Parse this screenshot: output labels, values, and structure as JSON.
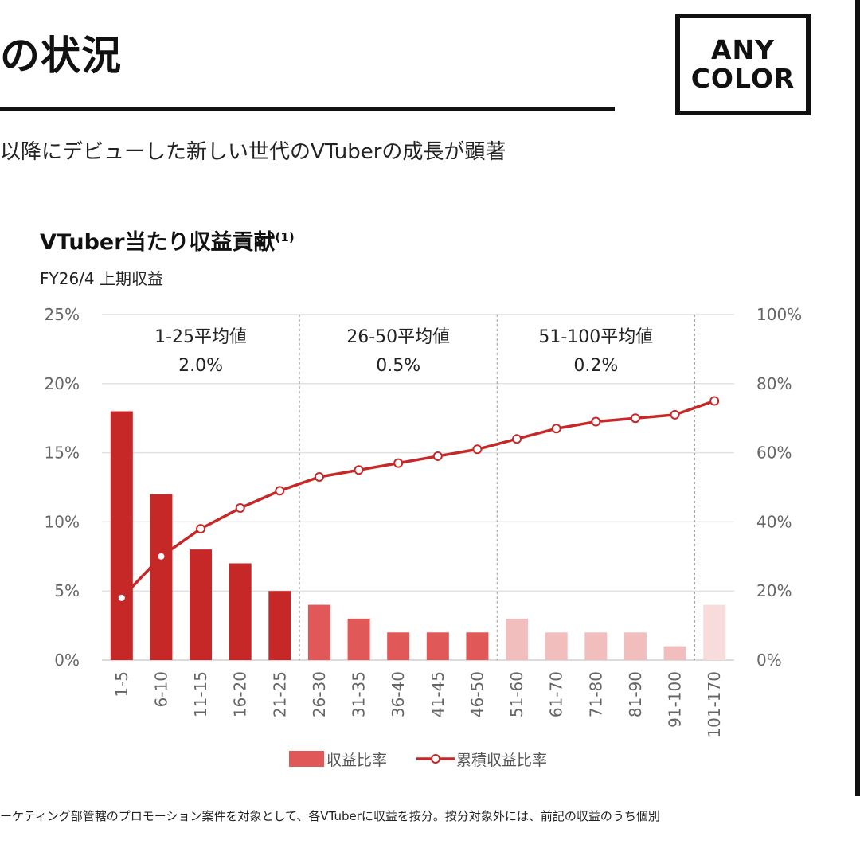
{
  "header": {
    "title": "の状況",
    "subtitle": "以降にデビューした新しい世代のVTuberの成長が顕著",
    "logo_line1": "ANY",
    "logo_line2": "COLOR"
  },
  "footnote": "ーケティング部管轄のプロモーション案件を対象として、各VTuberに収益を按分。按分対象外には、前記の収益のうち個別",
  "chart_data": {
    "type": "bar",
    "title": "VTuber当たり収益貢献",
    "title_note": "(1)",
    "subtitle": "FY26/4 上期収益",
    "categories": [
      "1-5",
      "6-10",
      "11-15",
      "16-20",
      "21-25",
      "26-30",
      "31-35",
      "36-40",
      "41-45",
      "46-50",
      "51-60",
      "61-70",
      "71-80",
      "81-90",
      "91-100",
      "101-170"
    ],
    "series": [
      {
        "name": "収益比率",
        "type": "bar",
        "axis": "left",
        "values": [
          18,
          12,
          8,
          7,
          5,
          4,
          3,
          2,
          2,
          2,
          3,
          2,
          2,
          2,
          1,
          4
        ]
      },
      {
        "name": "累積収益比率",
        "type": "line",
        "axis": "right",
        "values": [
          18,
          30,
          38,
          44,
          49,
          53,
          55,
          57,
          59,
          61,
          64,
          67,
          69,
          70,
          71,
          75
        ]
      }
    ],
    "bar_colors": {
      "1-25": "#c62828",
      "26-50": "#e05858",
      "51-100": "#f2bdbd",
      "101-170": "#f8dcdc"
    },
    "line_color": "#c62828",
    "y_left": {
      "range": [
        0,
        25
      ],
      "ticks": [
        "0%",
        "5%",
        "10%",
        "15%",
        "20%",
        "25%"
      ]
    },
    "y_right": {
      "range": [
        0,
        100
      ],
      "ticks": [
        "0%",
        "20%",
        "40%",
        "60%",
        "80%",
        "100%"
      ]
    },
    "grid": true,
    "group_annotations": [
      {
        "label": "1-25平均値",
        "value": "2.0%"
      },
      {
        "label": "26-50平均値",
        "value": "0.5%"
      },
      {
        "label": "51-100平均値",
        "value": "0.2%"
      }
    ],
    "legend_position": "bottom"
  }
}
